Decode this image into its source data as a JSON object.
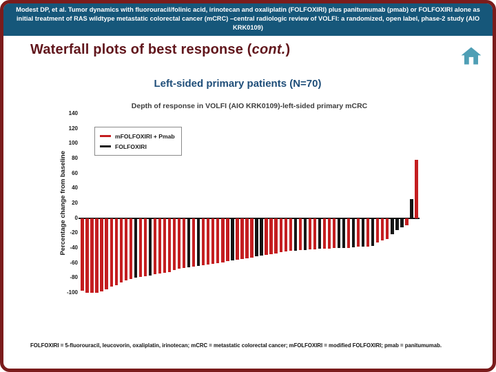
{
  "frame": {
    "border_color": "#7b1c1c",
    "background": "#ffffff"
  },
  "header": {
    "citation": "Modest DP, et al. Tumor dynamics with fluorouracil/folinic acid, irinotecan and oxaliplatin (FOLFOXIRI) plus panitumumab (pmab) or FOLFOXIRI alone as initial treatment of RAS wildtype metastatic colorectal cancer (mCRC) –central radiologic review of VOLFI: a randomized, open label, phase-2 study (AIO KRK0109)",
    "bg_color": "#16577a",
    "text_color": "#ffffff"
  },
  "title": {
    "prefix": "Waterfall plots of best response (",
    "italic": "cont.",
    "suffix": ")",
    "color": "#61161c"
  },
  "home_icon": {
    "color": "#4f9fb5"
  },
  "subtitle": {
    "text": "Left-sided primary patients (N=70)",
    "color": "#1f4e79"
  },
  "chart_data": {
    "type": "bar",
    "title": "Depth of response in VOLFI (AIO KRK0109)-left-sided primary mCRC",
    "xlabel": "",
    "ylabel": "Percentage change from baseline",
    "ylim": [
      -100,
      140
    ],
    "yticks": [
      140,
      120,
      100,
      80,
      60,
      40,
      20,
      0,
      -20,
      -40,
      -60,
      -80,
      -100
    ],
    "grid": false,
    "legend_position": "upper-left",
    "legend": [
      {
        "label": "mFOLFOXIRI + Pmab",
        "color": "#c41e20"
      },
      {
        "label": "FOLFOXIRI",
        "color": "#161616"
      }
    ],
    "bars": {
      "note": "one bar per patient, sorted; series 0 = mFOLFOXIRI + Pmab (red), 1 = FOLFOXIRI (black)",
      "values": [
        -97,
        -100,
        -100,
        -100,
        -98,
        -95,
        -92,
        -90,
        -86,
        -83,
        -82,
        -80,
        -79,
        -78,
        -77,
        -75,
        -74,
        -73,
        -72,
        -70,
        -68,
        -67,
        -66,
        -65,
        -64,
        -63,
        -62,
        -61,
        -60,
        -59,
        -58,
        -57,
        -56,
        -55,
        -54,
        -53,
        -51,
        -50,
        -49,
        -48,
        -47,
        -46,
        -45,
        -44,
        -44,
        -43,
        -43,
        -42,
        -42,
        -41,
        -41,
        -41,
        -40,
        -40,
        -40,
        -40,
        -39,
        -38,
        -38,
        -38,
        -37,
        -33,
        -30,
        -28,
        -22,
        -16,
        -12,
        -10,
        26,
        78
      ],
      "series": [
        0,
        0,
        0,
        0,
        0,
        0,
        0,
        0,
        0,
        0,
        0,
        1,
        0,
        0,
        1,
        0,
        0,
        0,
        0,
        0,
        0,
        0,
        1,
        0,
        1,
        0,
        0,
        0,
        0,
        0,
        0,
        1,
        0,
        0,
        0,
        0,
        1,
        1,
        0,
        0,
        0,
        0,
        0,
        0,
        1,
        0,
        1,
        0,
        0,
        1,
        0,
        0,
        0,
        1,
        1,
        0,
        1,
        0,
        1,
        0,
        1,
        0,
        0,
        0,
        1,
        1,
        1,
        0,
        1,
        0
      ]
    }
  },
  "footer": {
    "text": "FOLFOXIRI = 5-fluorouracil, leucovorin, oxaliplatin, irinotecan; mCRC = metastatic colorectal cancer; mFOLFOXIRI = modified FOLFOXIRI; pmab = panitumumab."
  }
}
